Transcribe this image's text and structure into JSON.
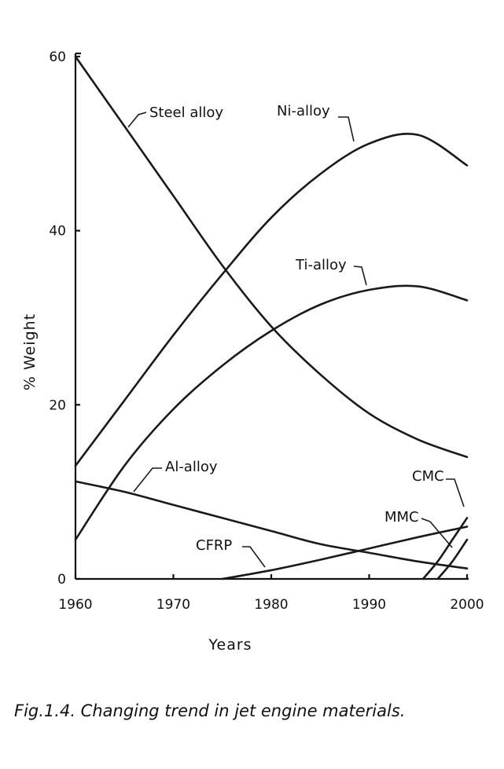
{
  "caption": "Fig.1.4.  Changing  trend  in  jet  engine  materials.",
  "chart_data": {
    "type": "line",
    "title": "",
    "xlabel": "Years",
    "ylabel": "% Weight",
    "xlim": [
      1960,
      2000
    ],
    "ylim": [
      0,
      60
    ],
    "xticks": [
      1960,
      1970,
      1980,
      1990,
      2000
    ],
    "yticks": [
      0,
      20,
      40,
      60
    ],
    "grid": false,
    "series": [
      {
        "name": "Steel alloy",
        "x": [
          1960,
          1965,
          1970,
          1975,
          1980,
          1985,
          1990,
          1995,
          2000
        ],
        "values": [
          60,
          52,
          44,
          36,
          29,
          23.5,
          19,
          16,
          14
        ]
      },
      {
        "name": "Ni-alloy",
        "x": [
          1960,
          1965,
          1970,
          1975,
          1980,
          1985,
          1990,
          1995,
          2000
        ],
        "values": [
          13,
          20.5,
          28,
          35,
          41.5,
          46.5,
          50,
          51,
          47.5
        ]
      },
      {
        "name": "Ti-alloy",
        "x": [
          1960,
          1965,
          1970,
          1975,
          1980,
          1985,
          1990,
          1995,
          2000
        ],
        "values": [
          4.5,
          13,
          19.5,
          24.5,
          28.5,
          31.5,
          33.2,
          33.6,
          32
        ]
      },
      {
        "name": "Al-alloy",
        "x": [
          1960,
          1965,
          1970,
          1975,
          1980,
          1985,
          1990,
          1995,
          2000
        ],
        "values": [
          11.2,
          10,
          8.5,
          7,
          5.5,
          4,
          3,
          2,
          1.2
        ]
      },
      {
        "name": "CFRP",
        "x": [
          1975,
          1980,
          1985,
          1990,
          1995,
          2000
        ],
        "values": [
          0,
          1,
          2.2,
          3.5,
          4.8,
          6
        ]
      },
      {
        "name": "CMC",
        "x": [
          1995.5,
          1997,
          1998.5,
          2000
        ],
        "values": [
          0,
          2,
          4.5,
          7
        ]
      },
      {
        "name": "MMC",
        "x": [
          1997,
          1998.5,
          2000
        ],
        "values": [
          0,
          2,
          4.5
        ]
      }
    ]
  }
}
